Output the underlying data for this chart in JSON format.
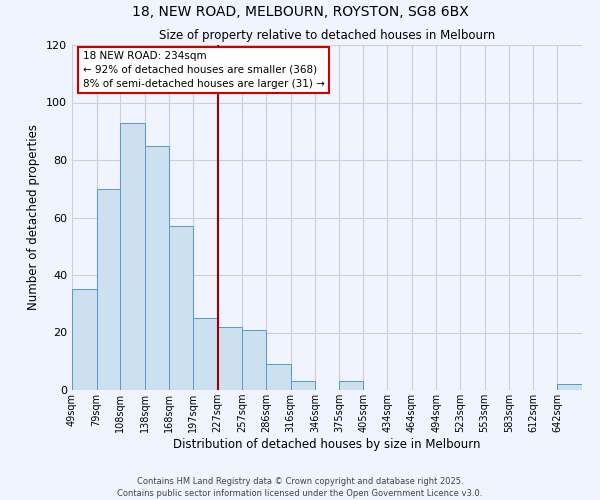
{
  "title": "18, NEW ROAD, MELBOURN, ROYSTON, SG8 6BX",
  "subtitle": "Size of property relative to detached houses in Melbourn",
  "xlabel": "Distribution of detached houses by size in Melbourn",
  "ylabel": "Number of detached properties",
  "bin_labels": [
    "49sqm",
    "79sqm",
    "108sqm",
    "138sqm",
    "168sqm",
    "197sqm",
    "227sqm",
    "257sqm",
    "286sqm",
    "316sqm",
    "346sqm",
    "375sqm",
    "405sqm",
    "434sqm",
    "464sqm",
    "494sqm",
    "523sqm",
    "553sqm",
    "583sqm",
    "612sqm",
    "642sqm"
  ],
  "bin_edges": [
    49,
    79,
    108,
    138,
    168,
    197,
    227,
    257,
    286,
    316,
    346,
    375,
    405,
    434,
    464,
    494,
    523,
    553,
    583,
    612,
    642
  ],
  "bar_heights": [
    35,
    70,
    93,
    85,
    57,
    25,
    22,
    21,
    9,
    3,
    0,
    3,
    0,
    0,
    0,
    0,
    0,
    0,
    0,
    0,
    2
  ],
  "bar_color": "#cce0f0",
  "bar_edge_color": "#5599cc",
  "vline_x": 227,
  "vline_color": "#990000",
  "ylim": [
    0,
    120
  ],
  "yticks": [
    0,
    20,
    40,
    60,
    80,
    100,
    120
  ],
  "annotation_title": "18 NEW ROAD: 234sqm",
  "annotation_line1": "← 92% of detached houses are smaller (368)",
  "annotation_line2": "8% of semi-detached houses are larger (31) →",
  "annotation_box_color": "#ffffff",
  "annotation_box_edge": "#cc0000",
  "footer1": "Contains HM Land Registry data © Crown copyright and database right 2025.",
  "footer2": "Contains public sector information licensed under the Open Government Licence v3.0.",
  "background_color": "#f0f4ff",
  "grid_color": "#ccccdd"
}
